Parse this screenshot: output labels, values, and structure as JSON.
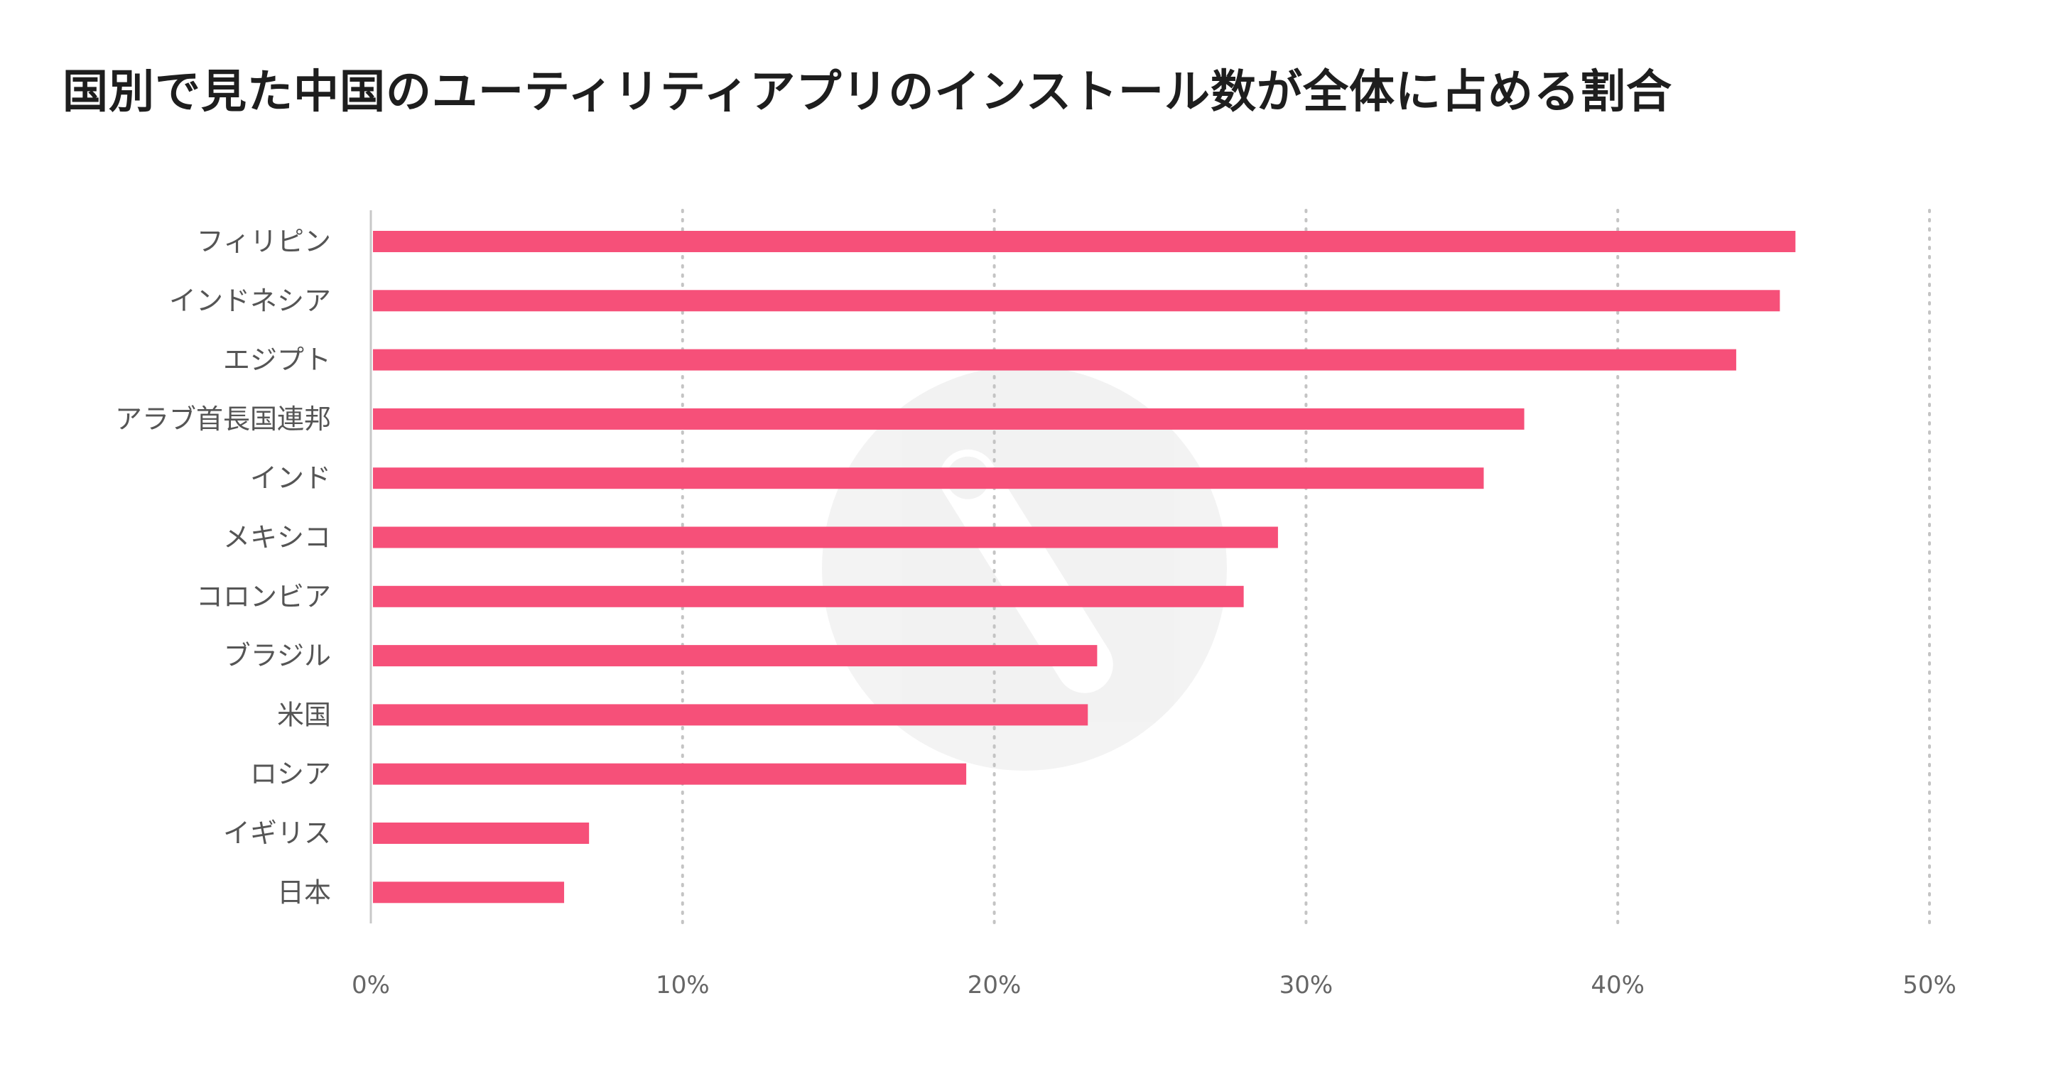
{
  "chart_data": {
    "type": "bar",
    "orientation": "horizontal",
    "title": "国別で見た中国のユーティリティアプリのインストール数が全体に占める割合",
    "xlabel": "",
    "ylabel": "",
    "categories": [
      "フィリピン",
      "インドネシア",
      "エジプト",
      "アラブ首長国連邦",
      "インド",
      "メキシコ",
      "コロンビア",
      "ブラジル",
      "米国",
      "ロシア",
      "イギリス",
      "日本"
    ],
    "values": [
      45.7,
      45.2,
      43.8,
      37.0,
      35.7,
      29.1,
      28.0,
      23.3,
      23.0,
      19.1,
      7.0,
      6.2
    ],
    "xlim": [
      0,
      50
    ],
    "xticks": [
      "0%",
      "10%",
      "20%",
      "30%",
      "40%",
      "50%"
    ],
    "grid": "vertical-dotted",
    "legend": "none",
    "bar_color": "#f65079"
  },
  "watermark_icon": "app-logo-watermark-icon"
}
